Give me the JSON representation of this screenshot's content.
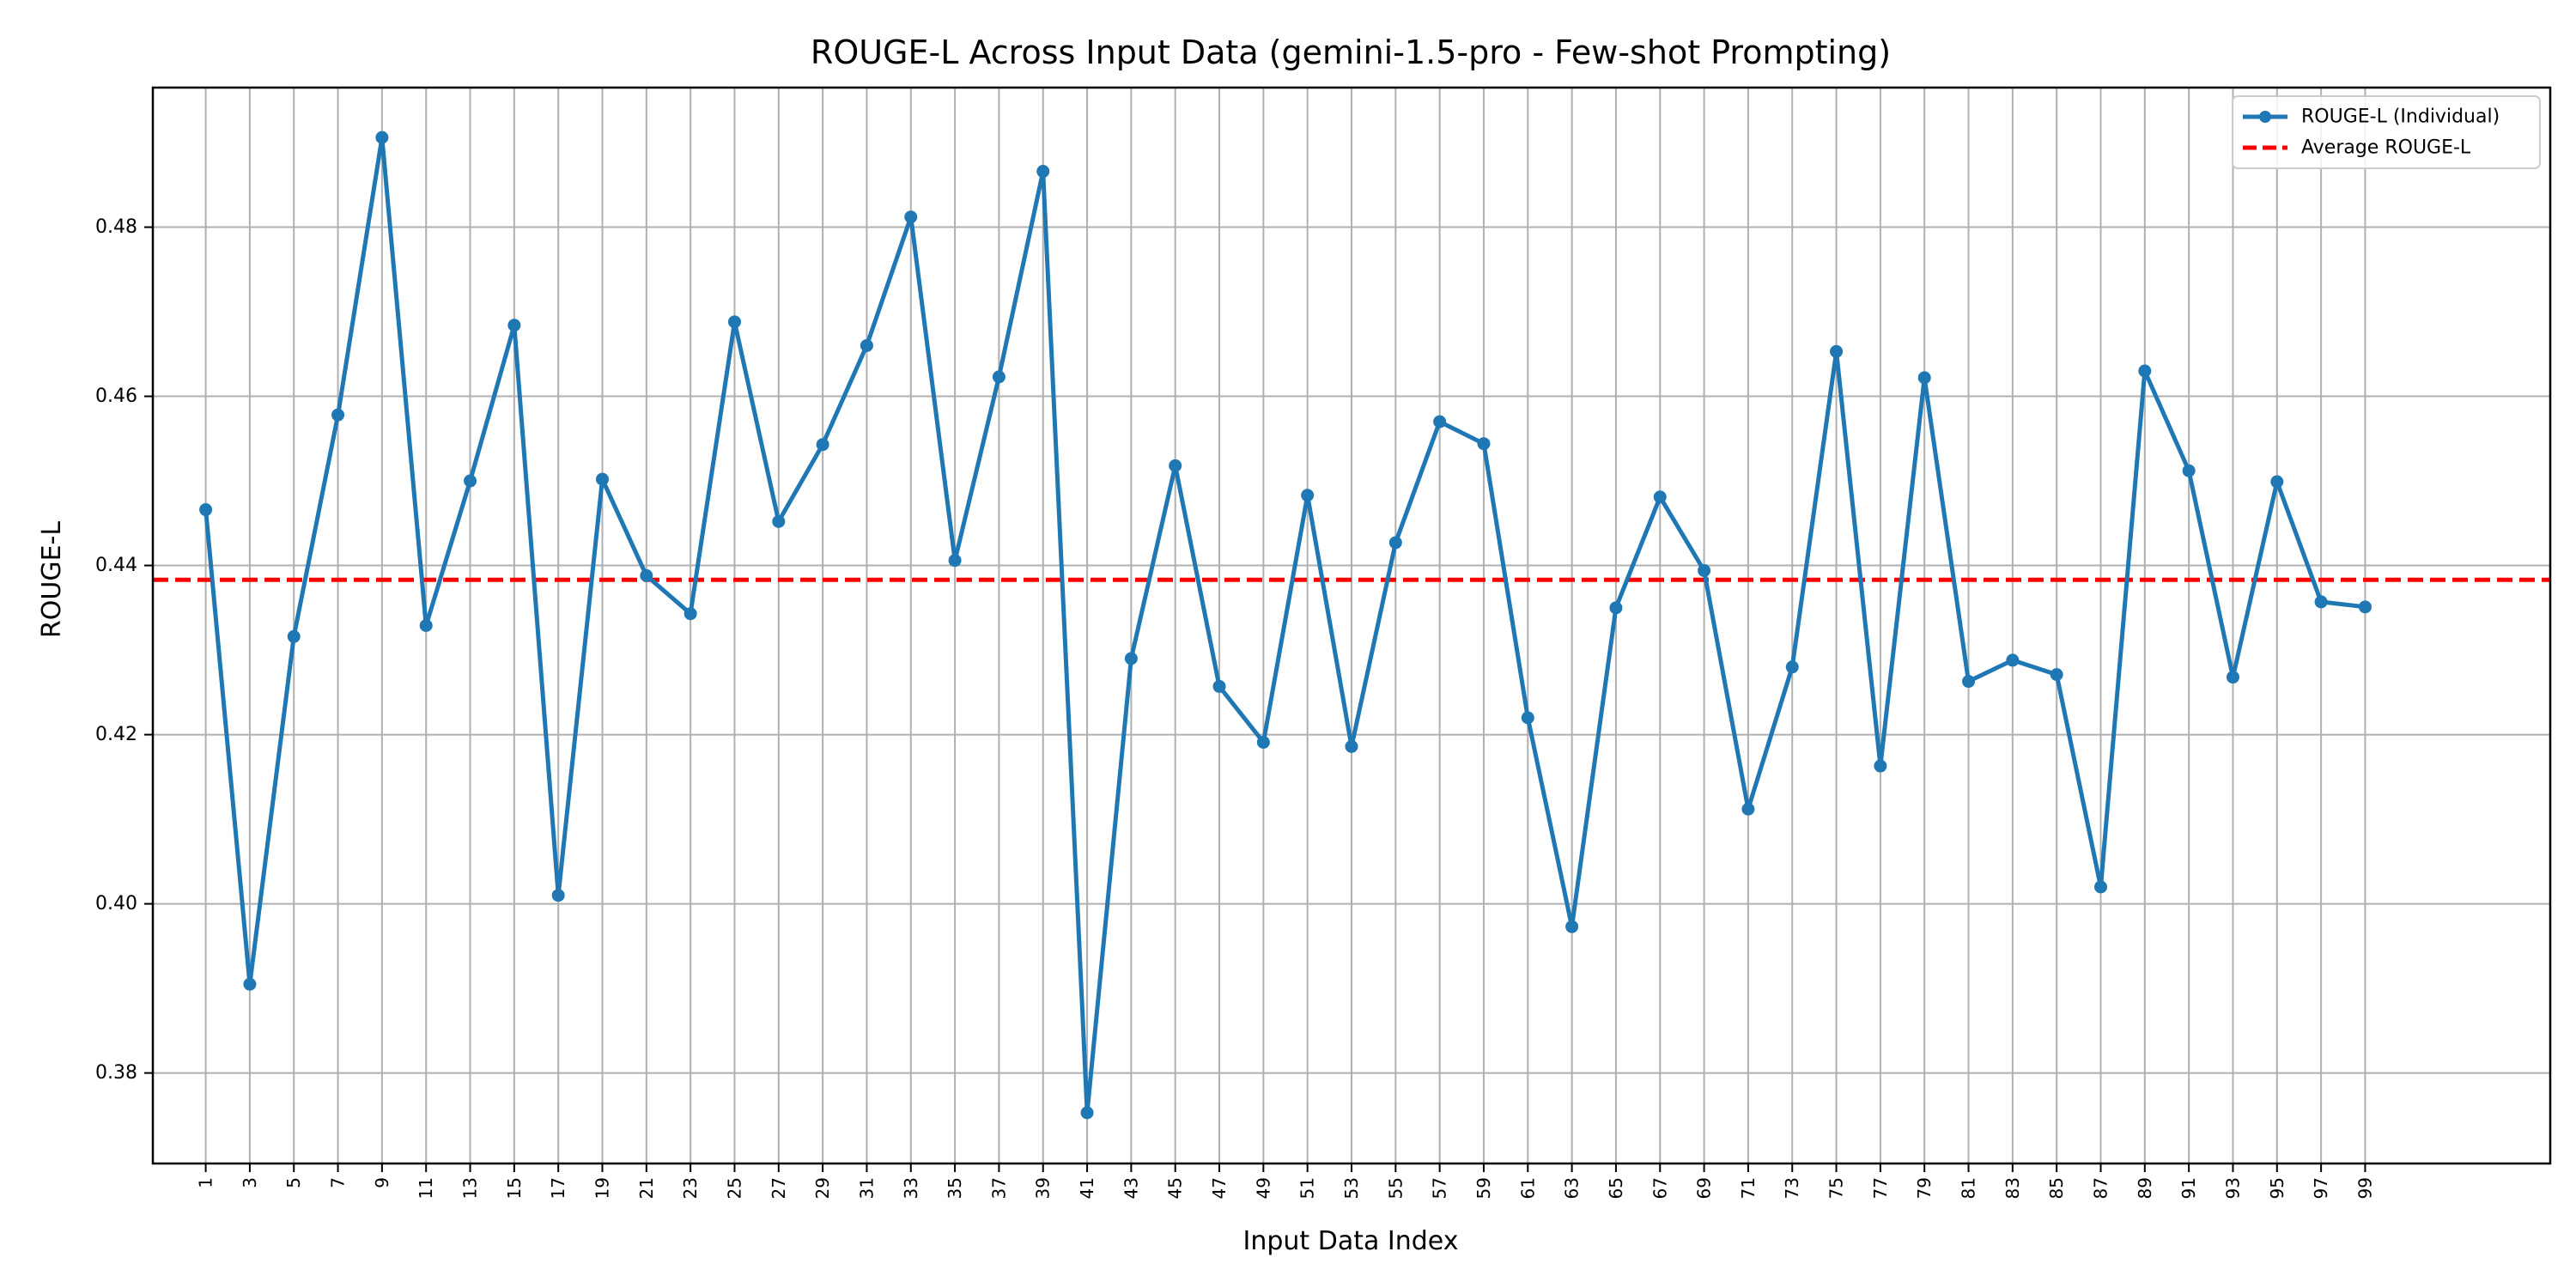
{
  "chart_data": {
    "type": "line",
    "title": "ROUGE-L Across Input Data (gemini-1.5-pro - Few-shot Prompting)",
    "xlabel": "Input Data Index",
    "ylabel": "ROUGE-L",
    "xlim": [
      -1.4,
      107.4
    ],
    "ylim": [
      0.3693,
      0.4965
    ],
    "x_ticks": [
      1,
      3,
      5,
      7,
      9,
      11,
      13,
      15,
      17,
      19,
      21,
      23,
      25,
      27,
      29,
      31,
      33,
      35,
      37,
      39,
      41,
      43,
      45,
      47,
      49,
      51,
      53,
      55,
      57,
      59,
      61,
      63,
      65,
      67,
      69,
      71,
      73,
      75,
      77,
      79,
      81,
      83,
      85,
      87,
      89,
      91,
      93,
      95,
      97,
      99
    ],
    "y_ticks": [
      0.38,
      0.4,
      0.42,
      0.44,
      0.46,
      0.48
    ],
    "grid": true,
    "legend_position": "top-right",
    "series": [
      {
        "name": "ROUGE-L (Individual)",
        "color": "#1f77b4",
        "x": [
          1,
          3,
          5,
          7,
          9,
          11,
          13,
          15,
          17,
          19,
          21,
          23,
          25,
          27,
          29,
          31,
          33,
          35,
          37,
          39,
          41,
          43,
          45,
          47,
          49,
          51,
          53,
          55,
          57,
          59,
          61,
          63,
          65,
          67,
          69,
          71,
          73,
          75,
          77,
          79,
          81,
          83,
          85,
          87,
          89,
          91,
          93,
          95,
          97,
          99
        ],
        "values": [
          0.4466,
          0.3905,
          0.4316,
          0.4578,
          0.4906,
          0.4329,
          0.45,
          0.4684,
          0.401,
          0.4502,
          0.4388,
          0.4343,
          0.4688,
          0.4452,
          0.4543,
          0.466,
          0.4812,
          0.4406,
          0.4623,
          0.4866,
          0.3753,
          0.429,
          0.4518,
          0.4257,
          0.4191,
          0.4483,
          0.4186,
          0.4427,
          0.457,
          0.4544,
          0.422,
          0.3973,
          0.435,
          0.4481,
          0.4394,
          0.4112,
          0.428,
          0.4653,
          0.4163,
          0.4622,
          0.4263,
          0.4288,
          0.4271,
          0.402,
          0.463,
          0.4512,
          0.4268,
          0.4499,
          0.4357,
          0.4351
        ]
      },
      {
        "name": "Average ROUGE-L",
        "color": "#ff0000",
        "style": "dashed",
        "value": 0.4383
      }
    ]
  }
}
